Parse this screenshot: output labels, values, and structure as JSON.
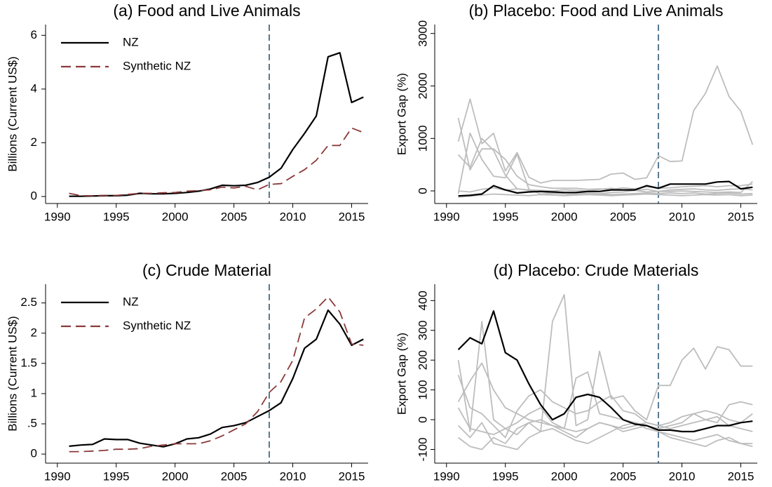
{
  "chart_data": [
    {
      "type": "line",
      "title": "(a) Food and Live Animals",
      "ylabel": "Billions (Current US$)",
      "x": [
        1991,
        1992,
        1993,
        1994,
        1995,
        1996,
        1997,
        1998,
        1999,
        2000,
        2001,
        2002,
        2003,
        2004,
        2005,
        2006,
        2007,
        2008,
        2009,
        2010,
        2011,
        2012,
        2013,
        2014,
        2015,
        2016
      ],
      "series": [
        {
          "name": "NZ",
          "color": "#000000",
          "style": "solid",
          "values": [
            0.01,
            0.01,
            0.02,
            0.03,
            0.03,
            0.05,
            0.12,
            0.1,
            0.1,
            0.12,
            0.15,
            0.2,
            0.28,
            0.42,
            0.4,
            0.42,
            0.52,
            0.72,
            1.05,
            1.75,
            2.35,
            3.0,
            5.2,
            5.35,
            3.5,
            3.7
          ]
        },
        {
          "name": "Synthetic NZ",
          "color": "#8b3a3a",
          "style": "dashed",
          "values": [
            0.12,
            0.03,
            0.03,
            0.04,
            0.04,
            0.08,
            0.12,
            0.12,
            0.14,
            0.15,
            0.2,
            0.22,
            0.25,
            0.35,
            0.32,
            0.38,
            0.25,
            0.45,
            0.48,
            0.75,
            1.0,
            1.35,
            1.9,
            1.9,
            2.55,
            2.38
          ]
        }
      ],
      "vline": 2008,
      "xlim": [
        1989,
        2016.4
      ],
      "xticks": [
        1990,
        1995,
        2000,
        2005,
        2010,
        2015
      ],
      "ylim": [
        -0.26,
        6.4
      ],
      "yticks": [
        0,
        2,
        4,
        6
      ],
      "legend": "upper left"
    },
    {
      "type": "line",
      "title": "(b) Placebo: Food and Live Animals",
      "ylabel": "Export Gap (%)",
      "x": [
        1991,
        1992,
        1993,
        1994,
        1995,
        1996,
        1997,
        1998,
        1999,
        2000,
        2001,
        2002,
        2003,
        2004,
        2005,
        2006,
        2007,
        2008,
        2009,
        2010,
        2011,
        2012,
        2013,
        2014,
        2015,
        2016
      ],
      "series": [
        {
          "color": "#bdbdbd",
          "style": "solid",
          "values": [
            940,
            1750,
            900,
            1100,
            380,
            730,
            260,
            150,
            200,
            200,
            200,
            210,
            220,
            320,
            340,
            220,
            250,
            670,
            560,
            570,
            1530,
            1860,
            2380,
            1800,
            1520,
            880
          ]
        },
        {
          "color": "#bdbdbd",
          "style": "solid",
          "values": [
            1390,
            400,
            800,
            800,
            600,
            280,
            120,
            80,
            50,
            50,
            50,
            30,
            40,
            30,
            60,
            40,
            80,
            50,
            60,
            80,
            90,
            100,
            80,
            100,
            100,
            130
          ]
        },
        {
          "color": "#bdbdbd",
          "style": "solid",
          "values": [
            690,
            450,
            1000,
            770,
            300,
            40,
            10,
            -20,
            -40,
            -30,
            -50,
            -40,
            -50,
            -30,
            -20,
            10,
            -20,
            -10,
            -10,
            0,
            -10,
            -20,
            -30,
            -20,
            -30,
            180
          ]
        },
        {
          "color": "#bdbdbd",
          "style": "solid",
          "values": [
            -50,
            1100,
            600,
            280,
            250,
            700,
            30,
            -60,
            -50,
            -60,
            -70,
            -50,
            -60,
            -70,
            -60,
            -50,
            -40,
            -50,
            -40,
            -50,
            -40,
            -60,
            -50,
            -40,
            -60,
            -50
          ]
        },
        {
          "color": "#bdbdbd",
          "style": "solid",
          "values": [
            -120,
            -100,
            -80,
            -60,
            -70,
            -80,
            -90,
            -70,
            -80,
            -90,
            -80,
            -70,
            -80,
            -90,
            -80,
            -70,
            -60,
            -70,
            -80,
            -90,
            -80,
            -70,
            -80,
            -70,
            -90,
            -80
          ]
        },
        {
          "color": "#bdbdbd",
          "style": "solid",
          "values": [
            0,
            -20,
            30,
            60,
            10,
            40,
            20,
            10,
            0,
            20,
            10,
            0,
            30,
            50,
            20,
            10,
            30,
            -10,
            20,
            30,
            40,
            20,
            10,
            30,
            40,
            20
          ]
        },
        {
          "color": "#000000",
          "style": "solid",
          "values": [
            -95,
            -85,
            -60,
            100,
            20,
            -40,
            -20,
            -10,
            -20,
            -30,
            -30,
            -10,
            -10,
            20,
            20,
            20,
            100,
            50,
            130,
            130,
            130,
            130,
            170,
            180,
            40,
            70
          ]
        }
      ],
      "vline": 2008,
      "xlim": [
        1989,
        2016.4
      ],
      "xticks": [
        1990,
        1995,
        2000,
        2005,
        2010,
        2015
      ],
      "ylim": [
        -240,
        3170
      ],
      "yticks": [
        0,
        1000,
        2000,
        3000
      ],
      "ytick_rotation": -90
    },
    {
      "type": "line",
      "title": "(c) Crude Material",
      "ylabel": "Billions (Current US$)",
      "x": [
        1991,
        1992,
        1993,
        1994,
        1995,
        1996,
        1997,
        1998,
        1999,
        2000,
        2001,
        2002,
        2003,
        2004,
        2005,
        2006,
        2007,
        2008,
        2009,
        2010,
        2011,
        2012,
        2013,
        2014,
        2015,
        2016
      ],
      "series": [
        {
          "name": "NZ",
          "color": "#000000",
          "style": "solid",
          "values": [
            0.13,
            0.15,
            0.16,
            0.25,
            0.24,
            0.24,
            0.18,
            0.15,
            0.12,
            0.17,
            0.25,
            0.27,
            0.33,
            0.44,
            0.47,
            0.52,
            0.62,
            0.72,
            0.85,
            1.25,
            1.75,
            1.9,
            2.38,
            2.15,
            1.8,
            1.9
          ]
        },
        {
          "name": "Synthetic NZ",
          "color": "#8b3a3a",
          "style": "dashed",
          "values": [
            0.04,
            0.04,
            0.05,
            0.06,
            0.08,
            0.08,
            0.09,
            0.13,
            0.15,
            0.17,
            0.17,
            0.17,
            0.22,
            0.3,
            0.4,
            0.5,
            0.7,
            1.02,
            1.2,
            1.55,
            2.25,
            2.4,
            2.6,
            2.35,
            1.82,
            1.8
          ]
        }
      ],
      "vline": 2008,
      "xlim": [
        1989,
        2016.4
      ],
      "xticks": [
        1990,
        1995,
        2000,
        2005,
        2010,
        2015
      ],
      "ylim": [
        -0.15,
        2.81
      ],
      "yticks": [
        0,
        {
          "value": 0.5,
          "label": ".5"
        },
        1,
        1.5,
        2,
        2.5
      ],
      "legend": "upper left"
    },
    {
      "type": "line",
      "title": "(d) Placebo: Crude Materials",
      "ylabel": "Export Gap (%)",
      "x": [
        1991,
        1992,
        1993,
        1994,
        1995,
        1996,
        1997,
        1998,
        1999,
        2000,
        2001,
        2002,
        2003,
        2004,
        2005,
        2006,
        2007,
        2008,
        2009,
        2010,
        2011,
        2012,
        2013,
        2014,
        2015,
        2016
      ],
      "series": [
        {
          "color": "#bdbdbd",
          "style": "solid",
          "values": [
            200,
            -40,
            330,
            0,
            -30,
            -50,
            -10,
            -40,
            330,
            420,
            -20,
            0,
            230,
            70,
            80,
            30,
            0,
            115,
            115,
            200,
            240,
            170,
            245,
            235,
            180,
            180
          ]
        },
        {
          "color": "#bdbdbd",
          "style": "solid",
          "values": [
            60,
            130,
            190,
            100,
            40,
            20,
            0,
            -10,
            -20,
            -30,
            140,
            160,
            20,
            10,
            0,
            -10,
            -20,
            -30,
            -20,
            -10,
            20,
            0,
            -10,
            50,
            60,
            50
          ]
        },
        {
          "color": "#bdbdbd",
          "style": "solid",
          "values": [
            -60,
            -90,
            -100,
            -60,
            -80,
            -30,
            -10,
            0,
            -20,
            -40,
            -60,
            -30,
            -10,
            -20,
            -40,
            -30,
            -20,
            -40,
            -50,
            -60,
            -70,
            -60,
            -50,
            -70,
            -80,
            -80
          ]
        },
        {
          "color": "#bdbdbd",
          "style": "solid",
          "values": [
            150,
            40,
            20,
            -20,
            -60,
            30,
            80,
            100,
            60,
            40,
            20,
            30,
            60,
            80,
            30,
            20,
            -10,
            -20,
            -10,
            10,
            20,
            30,
            20,
            0,
            -10,
            20
          ]
        },
        {
          "color": "#bdbdbd",
          "style": "solid",
          "values": [
            -20,
            -60,
            -10,
            -80,
            -90,
            -100,
            -60,
            -40,
            -30,
            -50,
            -70,
            -80,
            -60,
            -40,
            -20,
            -10,
            -30,
            -40,
            -60,
            -70,
            -80,
            -90,
            -70,
            -60,
            -80,
            -90
          ]
        },
        {
          "color": "#bdbdbd",
          "style": "solid",
          "values": [
            40,
            -30,
            -40,
            -50,
            -30,
            -10,
            20,
            40,
            -10,
            -30,
            -40,
            -30,
            -10,
            -20,
            -30,
            -20,
            -10,
            -20,
            -30,
            -20,
            -10,
            0,
            10,
            -20,
            -30,
            -40
          ]
        },
        {
          "color": "#000000",
          "style": "solid",
          "values": [
            235,
            275,
            255,
            365,
            225,
            200,
            120,
            50,
            0,
            20,
            75,
            85,
            75,
            40,
            0,
            -15,
            -20,
            -35,
            -35,
            -40,
            -40,
            -30,
            -20,
            -20,
            -10,
            -5
          ]
        }
      ],
      "vline": 2008,
      "xlim": [
        1989,
        2016.4
      ],
      "xticks": [
        1990,
        1995,
        2000,
        2005,
        2010,
        2015
      ],
      "ylim": [
        -146,
        455
      ],
      "yticks": [
        -100,
        0,
        100,
        200,
        300,
        400
      ],
      "ytick_rotation": -90
    }
  ]
}
